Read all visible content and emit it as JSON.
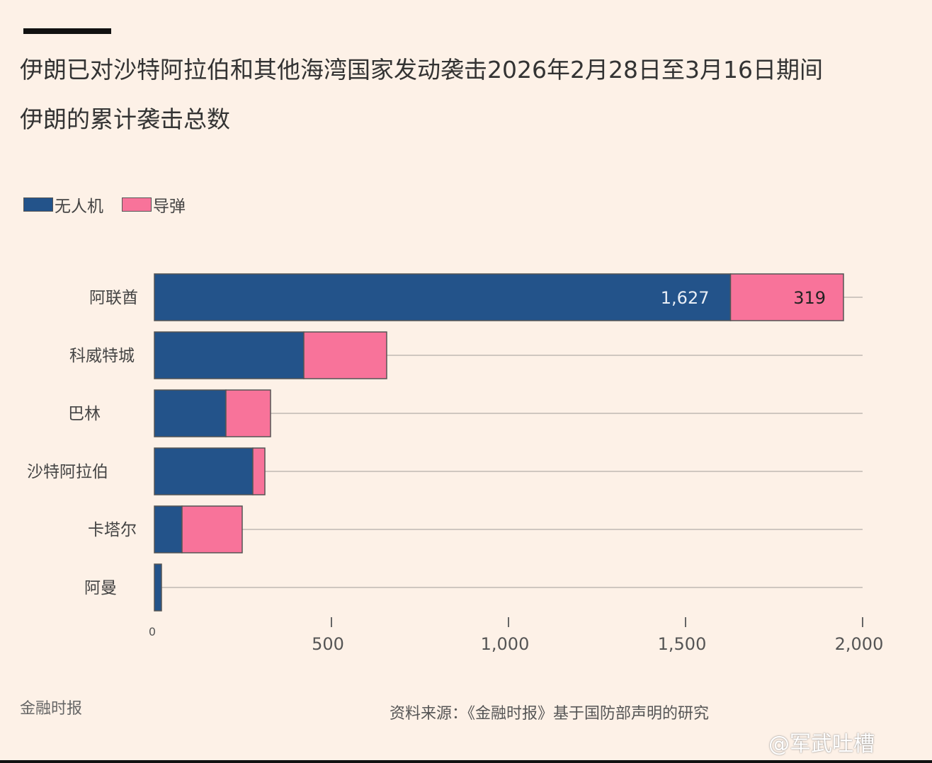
{
  "chart_data": {
    "type": "bar",
    "orientation": "horizontal",
    "stacked": true,
    "title": "伊朗已对沙特阿拉伯和其他海湾国家发动袭击2026年2月28日至3月16日期间",
    "subtitle": "伊朗的累计袭击总数",
    "categories": [
      "阿联酋",
      "科威特城",
      "巴林",
      "沙特阿拉伯",
      "卡塔尔",
      "阿曼"
    ],
    "series": [
      {
        "name": "无人机",
        "color": "#23538a",
        "values": [
          1627,
          422,
          202,
          278,
          78,
          20
        ]
      },
      {
        "name": "导弹",
        "color": "#f8739a",
        "values": [
          319,
          234,
          126,
          34,
          170,
          0
        ]
      }
    ],
    "data_labels": {
      "drone_uae": "1,627",
      "missile_uae": "319"
    },
    "xlim": [
      0,
      2000
    ],
    "xticks": [
      "0",
      "500",
      "1,000",
      "1,500",
      "2,000"
    ],
    "grid": true,
    "legend_position": "top-left"
  },
  "footer": {
    "brand": "金融时报",
    "source": "资料来源：《金融时报》基于国防部声明的研究",
    "watermark": "@军武吐槽"
  }
}
